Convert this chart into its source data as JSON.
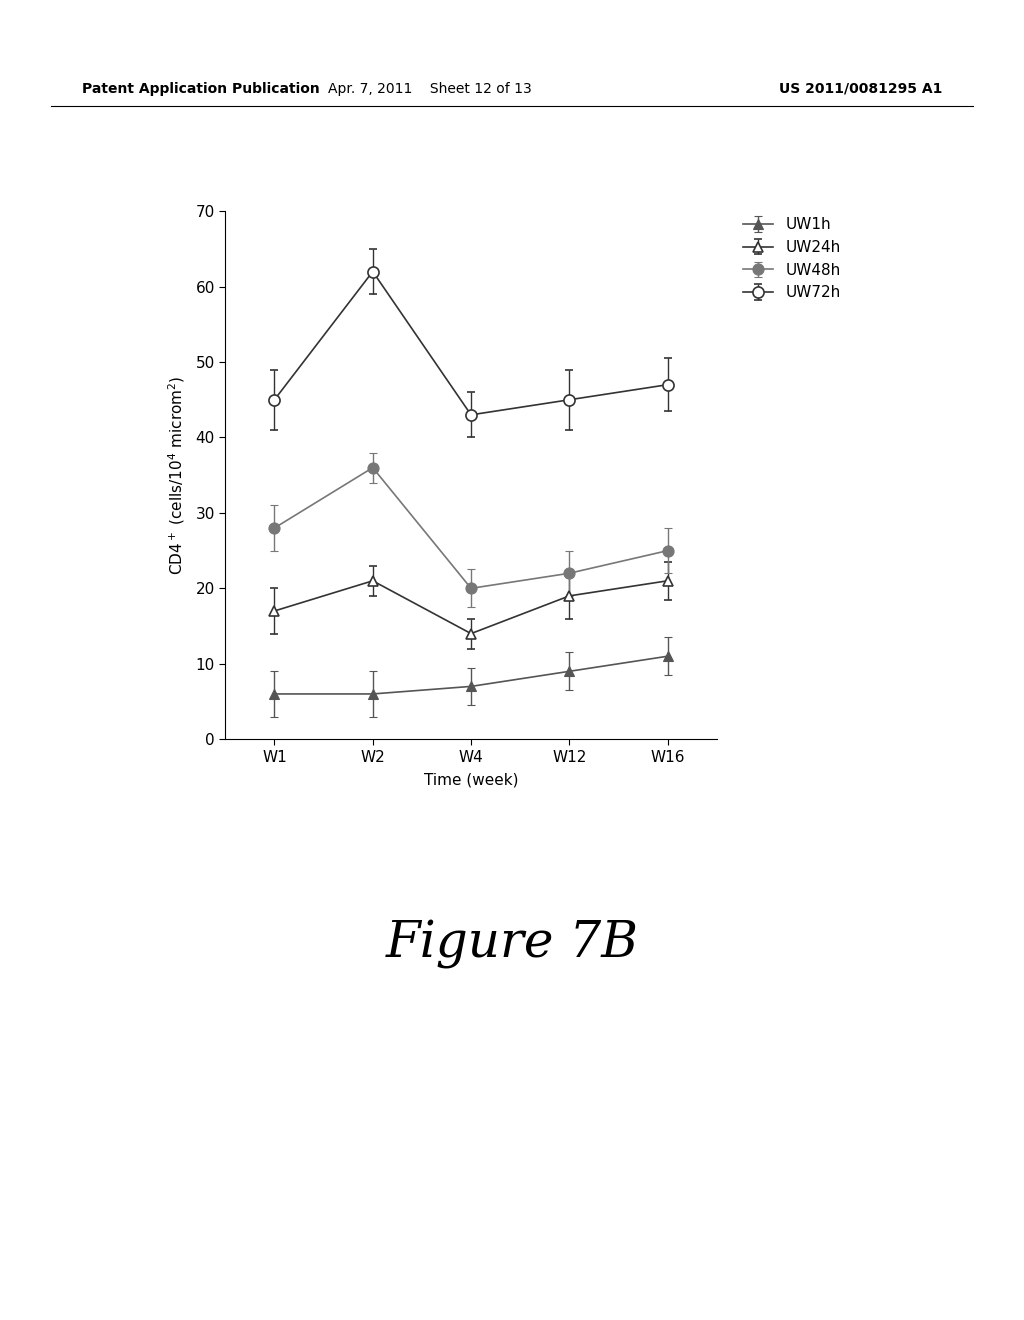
{
  "x_labels": [
    "W1",
    "W2",
    "W4",
    "W12",
    "W16"
  ],
  "x_positions": [
    0,
    1,
    2,
    3,
    4
  ],
  "series": [
    {
      "label": "UW1h",
      "y": [
        6,
        6,
        7,
        9,
        11
      ],
      "yerr": [
        3,
        3,
        2.5,
        2.5,
        2.5
      ],
      "marker": "^",
      "markersize": 7,
      "color": "#555555",
      "fillstyle": "full",
      "linewidth": 1.2
    },
    {
      "label": "UW24h",
      "y": [
        17,
        21,
        14,
        19,
        21
      ],
      "yerr": [
        3,
        2,
        2,
        3,
        2.5
      ],
      "marker": "^",
      "markersize": 7,
      "color": "#333333",
      "fillstyle": "none",
      "linewidth": 1.2
    },
    {
      "label": "UW48h",
      "y": [
        28,
        36,
        20,
        22,
        25
      ],
      "yerr": [
        3,
        2,
        2.5,
        3,
        3
      ],
      "marker": "o",
      "markersize": 8,
      "color": "#777777",
      "fillstyle": "full",
      "linewidth": 1.2
    },
    {
      "label": "UW72h",
      "y": [
        45,
        62,
        43,
        45,
        47
      ],
      "yerr": [
        4,
        3,
        3,
        4,
        3.5
      ],
      "marker": "o",
      "markersize": 8,
      "color": "#333333",
      "fillstyle": "none",
      "linewidth": 1.2
    }
  ],
  "ylabel": "CD4$^+$ (cells/10$^4$ microm$^2$)",
  "xlabel": "Time (week)",
  "ylim": [
    0,
    70
  ],
  "yticks": [
    0,
    10,
    20,
    30,
    40,
    50,
    60,
    70
  ],
  "title_text": "Figure 7B",
  "header_left": "Patent Application Publication",
  "header_mid": "Apr. 7, 2011    Sheet 12 of 13",
  "header_right": "US 2011/0081295 A1",
  "background_color": "#ffffff"
}
